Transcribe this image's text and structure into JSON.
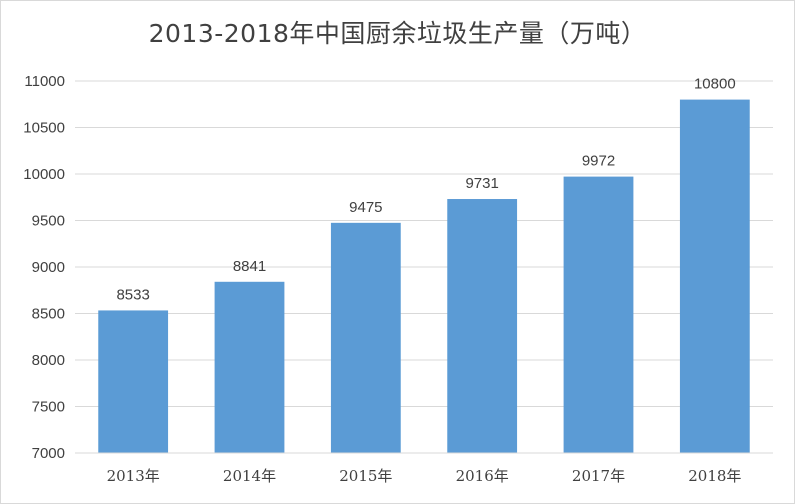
{
  "chart_data": {
    "type": "bar",
    "title": "2013-2018年中国厨余垃圾生产量（万吨）",
    "xlabel": "",
    "ylabel": "",
    "categories": [
      "2013年",
      "2014年",
      "2015年",
      "2016年",
      "2017年",
      "2018年"
    ],
    "values": [
      8533,
      8841,
      9475,
      9731,
      9972,
      10800
    ],
    "data_labels": [
      "8533",
      "8841",
      "9475",
      "9731",
      "9972",
      "10800"
    ],
    "ylim": [
      7000,
      11000
    ],
    "yticks": [
      7000,
      7500,
      8000,
      8500,
      9000,
      9500,
      10000,
      10500,
      11000
    ],
    "ytick_labels": [
      "7000",
      "7500",
      "8000",
      "8500",
      "9000",
      "9500",
      "10000",
      "10500",
      "11000"
    ],
    "grid": true,
    "legend": "none",
    "bar_color": "#5b9bd5",
    "grid_color": "#d9d9d9",
    "text_color": "#404040"
  }
}
